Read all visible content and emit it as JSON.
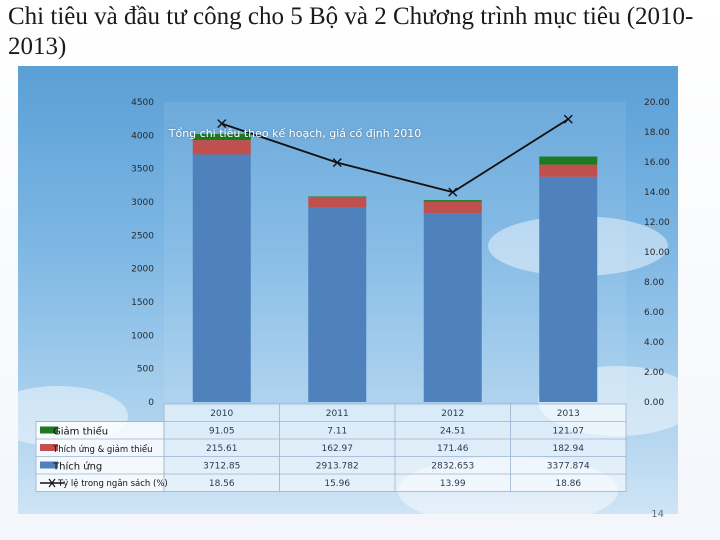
{
  "slide": {
    "title": "Chi tiêu và đầu tư công cho 5 Bộ và 2 Chương trình mục tiêu (2010-2013)",
    "page_number": "14"
  },
  "colors": {
    "mitigation": "#1f7a1f",
    "adapt_mitigation": "#c0504d",
    "adaptation": "#4f81bd",
    "line": "#111111"
  },
  "chart_data": {
    "type": "bar",
    "stacked": true,
    "title": "Tổng chi tiêu theo kế hoạch, giá cố định 2010",
    "categories": [
      "2010",
      "2011",
      "2012",
      "2013"
    ],
    "series": [
      {
        "name": "Giảm thiểu",
        "values": [
          91.05,
          7.11,
          24.51,
          121.07
        ],
        "labels": [
          "91.05",
          "7.11",
          "24.51",
          "121.07"
        ]
      },
      {
        "name": "Thích ứng & giảm thiểu",
        "values": [
          215.61,
          162.97,
          171.46,
          182.94
        ],
        "labels": [
          "215.61",
          "162.97",
          "171.46",
          "182.94"
        ]
      },
      {
        "name": "Thích ứng",
        "values": [
          3712.85,
          2913.782,
          2832.653,
          3377.874
        ],
        "labels": [
          "3712.85",
          "2913.782",
          "2832.653",
          "3377.874"
        ]
      }
    ],
    "line_series": {
      "name": "Tỷ lệ trong ngân sách (%)",
      "values": [
        18.56,
        15.96,
        13.99,
        18.86
      ],
      "labels": [
        "18.56",
        "15.96",
        "13.99",
        "18.86"
      ],
      "axis": "right"
    },
    "y_left": {
      "min": 0,
      "max": 4500,
      "ticks": [
        0,
        500,
        1000,
        1500,
        2000,
        2500,
        3000,
        3500,
        4000,
        4500
      ]
    },
    "y_right": {
      "min": 0,
      "max": 20,
      "ticks": [
        "0.00",
        "2.00",
        "4.00",
        "6.00",
        "8.00",
        "10.00",
        "12.00",
        "14.00",
        "16.00",
        "18.00",
        "20.00"
      ]
    }
  }
}
